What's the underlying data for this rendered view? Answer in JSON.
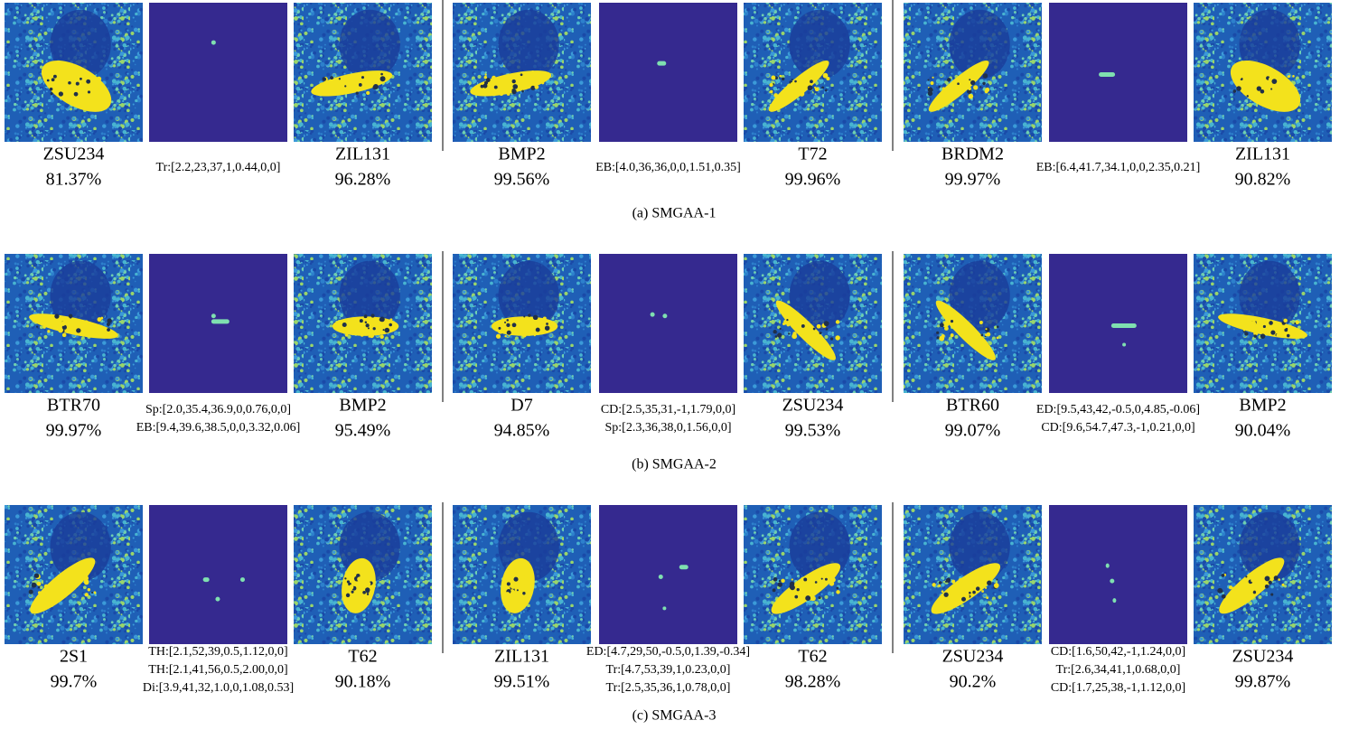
{
  "rows": [
    {
      "caption": "(a)  SMGAA-1",
      "groups": [
        {
          "left": {
            "label": "ZSU234",
            "confidence": "81.37%"
          },
          "params": [
            "Tr:[2.2,23,37,1,0.44,0,0]"
          ],
          "right": {
            "label": "ZIL131",
            "confidence": "96.28%"
          }
        },
        {
          "left": {
            "label": "BMP2",
            "confidence": "99.56%"
          },
          "params": [
            "EB:[4.0,36,36,0,0,1.51,0.35]"
          ],
          "right": {
            "label": "T72",
            "confidence": "99.96%"
          }
        },
        {
          "left": {
            "label": "BRDM2",
            "confidence": "99.97%"
          },
          "params": [
            "EB:[6.4,41.7,34.1,0,0,2.35,0.21]"
          ],
          "right": {
            "label": "ZIL131",
            "confidence": "90.82%"
          }
        }
      ]
    },
    {
      "caption": "(b)  SMGAA-2",
      "groups": [
        {
          "left": {
            "label": "BTR70",
            "confidence": "99.97%"
          },
          "params": [
            "Sp:[2.0,35.4,36.9,0,0.76,0,0]",
            "EB:[9.4,39.6,38.5,0,0,3.32,0.06]"
          ],
          "right": {
            "label": "BMP2",
            "confidence": "95.49%"
          }
        },
        {
          "left": {
            "label": "D7",
            "confidence": "94.85%"
          },
          "params": [
            "CD:[2.5,35,31,-1,1.79,0,0]",
            "Sp:[2.3,36,38,0,1.56,0,0]"
          ],
          "right": {
            "label": "ZSU234",
            "confidence": "99.53%"
          }
        },
        {
          "left": {
            "label": "BTR60",
            "confidence": "99.07%"
          },
          "params": [
            "ED:[9.5,43,42,-0.5,0,4.85,-0.06]",
            "CD:[9.6,54.7,47.3,-1,0.21,0,0]"
          ],
          "right": {
            "label": "BMP2",
            "confidence": "90.04%"
          }
        }
      ]
    },
    {
      "caption": "(c)  SMGAA-3",
      "groups": [
        {
          "left": {
            "label": "2S1",
            "confidence": "99.7%"
          },
          "params": [
            "TH:[2.1,52,39,0.5,1.12,0,0]",
            "TH:[2.1,41,56,0.5,2.00,0,0]",
            "Di:[3.9,41,32,1.0,0,1.08,0.53]"
          ],
          "right": {
            "label": "T62",
            "confidence": "90.18%"
          }
        },
        {
          "left": {
            "label": "ZIL131",
            "confidence": "99.51%"
          },
          "params": [
            "ED:[4.7,29,50,-0.5,0,1.39,-0.34]",
            "Tr:[4.7,53,39,1,0.23,0,0]",
            "Tr:[2.5,35,36,1,0.78,0,0]"
          ],
          "right": {
            "label": "T62",
            "confidence": "98.28%"
          }
        },
        {
          "left": {
            "label": "ZSU234",
            "confidence": "90.2%"
          },
          "params": [
            "CD:[1.6,50,42,-1,1.24,0,0]",
            "Tr:[2.6,34,41,1,0.68,0,0]",
            "CD:[1.7,25,38,-1,1.12,0,0]"
          ],
          "right": {
            "label": "ZSU234",
            "confidence": "99.87%"
          }
        }
      ]
    }
  ]
}
